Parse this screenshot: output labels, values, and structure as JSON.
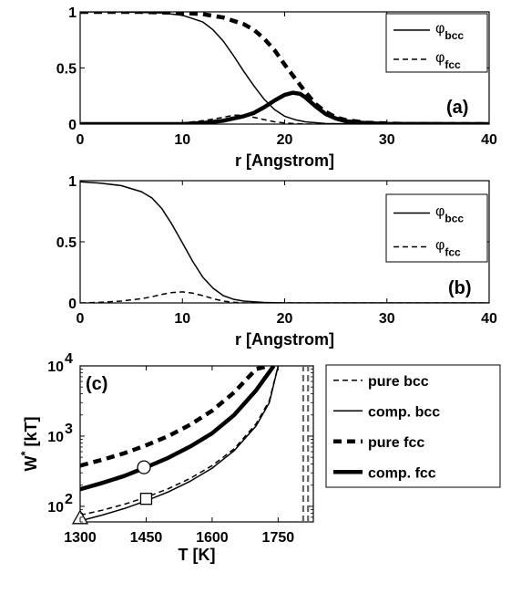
{
  "chart_data": [
    {
      "panel": "(a)",
      "type": "line",
      "xlabel": "r [Angstrom]",
      "ylabel": "",
      "xlim": [
        0,
        40
      ],
      "ylim": [
        0,
        1
      ],
      "xticks": [
        0,
        10,
        20,
        30,
        40
      ],
      "yticks": [
        0,
        0.5,
        1
      ],
      "ytick_labels": [
        "0",
        "0.5",
        "1"
      ],
      "grid": false,
      "legend": {
        "position": "top-right",
        "entries": [
          {
            "base": "φ",
            "sub": "bcc",
            "style": "solid"
          },
          {
            "base": "φ",
            "sub": "fcc",
            "style": "dashed"
          }
        ]
      },
      "series": [
        {
          "style": "solid-thin",
          "x": [
            0,
            4,
            8,
            10,
            12,
            13,
            14,
            15,
            16,
            17,
            18,
            19,
            20,
            21,
            22,
            24,
            28,
            40
          ],
          "y": [
            1.0,
            1.0,
            0.99,
            0.97,
            0.91,
            0.84,
            0.74,
            0.61,
            0.47,
            0.34,
            0.22,
            0.13,
            0.07,
            0.04,
            0.02,
            0.005,
            0.0,
            0.0
          ]
        },
        {
          "style": "dashed-thick",
          "x": [
            0,
            6,
            10,
            12,
            14,
            16,
            17,
            18,
            19,
            20,
            21,
            22,
            23,
            24,
            25,
            26,
            28,
            32,
            40
          ],
          "y": [
            1.0,
            1.0,
            0.99,
            0.98,
            0.95,
            0.89,
            0.84,
            0.76,
            0.66,
            0.53,
            0.41,
            0.29,
            0.18,
            0.11,
            0.06,
            0.035,
            0.012,
            0.0,
            0.0
          ]
        },
        {
          "style": "dashed-thin",
          "x": [
            0,
            8,
            10,
            12,
            14,
            15,
            16,
            17,
            18,
            19,
            20,
            22,
            40
          ],
          "y": [
            0.0,
            0.0,
            0.01,
            0.03,
            0.06,
            0.08,
            0.08,
            0.06,
            0.04,
            0.02,
            0.01,
            0.0,
            0.0
          ]
        },
        {
          "style": "solid-thick",
          "x": [
            0,
            10,
            12,
            14,
            15,
            16,
            17,
            18,
            19,
            20,
            20.8,
            21.5,
            22,
            23,
            24,
            25,
            26,
            28,
            30,
            40
          ],
          "y": [
            0.0,
            0.0,
            0.01,
            0.03,
            0.05,
            0.07,
            0.1,
            0.15,
            0.21,
            0.26,
            0.28,
            0.27,
            0.24,
            0.16,
            0.09,
            0.05,
            0.025,
            0.008,
            0.002,
            0.0
          ]
        }
      ]
    },
    {
      "panel": "(b)",
      "type": "line",
      "xlabel": "r [Angstrom]",
      "ylabel": "",
      "xlim": [
        0,
        40
      ],
      "ylim": [
        0,
        1
      ],
      "xticks": [
        0,
        10,
        20,
        30,
        40
      ],
      "yticks": [
        0,
        0.5,
        1
      ],
      "ytick_labels": [
        "0",
        "0.5",
        "1"
      ],
      "grid": false,
      "legend": {
        "position": "top-right",
        "entries": [
          {
            "base": "φ",
            "sub": "bcc",
            "style": "solid"
          },
          {
            "base": "φ",
            "sub": "fcc",
            "style": "dashed"
          }
        ]
      },
      "series": [
        {
          "style": "solid-thin",
          "x": [
            0,
            2,
            4,
            6,
            7,
            8,
            9,
            10,
            11,
            12,
            13,
            14,
            15,
            16,
            18,
            20,
            40
          ],
          "y": [
            0.99,
            0.98,
            0.96,
            0.91,
            0.86,
            0.77,
            0.64,
            0.49,
            0.34,
            0.21,
            0.12,
            0.06,
            0.03,
            0.015,
            0.004,
            0.0,
            0.0
          ]
        },
        {
          "style": "dashed-thin",
          "x": [
            0,
            2,
            4,
            6,
            7,
            8,
            9,
            10,
            11,
            12,
            13,
            14,
            15,
            16,
            40
          ],
          "y": [
            0.0,
            0.005,
            0.015,
            0.035,
            0.05,
            0.07,
            0.085,
            0.09,
            0.08,
            0.06,
            0.035,
            0.015,
            0.005,
            0.0,
            0.0
          ]
        }
      ]
    },
    {
      "panel": "(c)",
      "type": "line",
      "xlabel": "T [K]",
      "ylabel": "W* [kT]",
      "ylabel_base": "W",
      "ylabel_sup": "*",
      "ylabel_rest": " [kT]",
      "yscale": "log",
      "xlim": [
        1300,
        1830
      ],
      "ylim": [
        60,
        10000
      ],
      "xticks": [
        1300,
        1450,
        1600,
        1750
      ],
      "yticks": [
        100,
        1000,
        10000
      ],
      "ytick_base": "10",
      "ytick_exps": [
        "2",
        "3",
        "4"
      ],
      "grid": false,
      "legend": {
        "position": "outside-right",
        "entries": [
          {
            "label": "pure bcc",
            "style": "dashed-thin"
          },
          {
            "label": "comp. bcc",
            "style": "solid-thin"
          },
          {
            "label": "pure fcc",
            "style": "dashed-thick"
          },
          {
            "label": "comp. fcc",
            "style": "solid-thick"
          }
        ]
      },
      "series": [
        {
          "name": "pure bcc",
          "style": "dashed-thin",
          "x": [
            1300,
            1350,
            1400,
            1450,
            1500,
            1550,
            1600,
            1650,
            1700,
            1730,
            1750
          ],
          "y": [
            75,
            88,
            107,
            135,
            178,
            250,
            380,
            660,
            1500,
            3200,
            10000
          ]
        },
        {
          "name": "comp. bcc",
          "style": "solid-thin",
          "x": [
            1300,
            1350,
            1400,
            1450,
            1500,
            1550,
            1600,
            1650,
            1700,
            1730,
            1750
          ],
          "y": [
            62,
            75,
            93,
            120,
            160,
            228,
            350,
            620,
            1400,
            3000,
            10000
          ]
        },
        {
          "name": "pure fcc",
          "style": "dashed-thick",
          "x": [
            1300,
            1350,
            1400,
            1450,
            1500,
            1550,
            1600,
            1650,
            1700,
            1730
          ],
          "y": [
            380,
            460,
            570,
            740,
            1000,
            1450,
            2300,
            4200,
            9000,
            10000
          ]
        },
        {
          "name": "comp. fcc",
          "style": "solid-thick",
          "x": [
            1300,
            1350,
            1400,
            1450,
            1500,
            1550,
            1600,
            1650,
            1700,
            1740
          ],
          "y": [
            175,
            215,
            270,
            360,
            490,
            710,
            1100,
            2000,
            4500,
            10000
          ]
        },
        {
          "style": "vline-gray-dashed",
          "x": [
            1807,
            1807
          ],
          "y": [
            60,
            10000
          ]
        },
        {
          "style": "vline-gray-dashed",
          "x": [
            1818,
            1818
          ],
          "y": [
            60,
            10000
          ]
        }
      ],
      "markers": [
        {
          "shape": "circle",
          "x": 1445,
          "y": 360
        },
        {
          "shape": "square",
          "x": 1450,
          "y": 128
        },
        {
          "shape": "triangle",
          "x": 1300,
          "y": 68
        }
      ]
    }
  ]
}
